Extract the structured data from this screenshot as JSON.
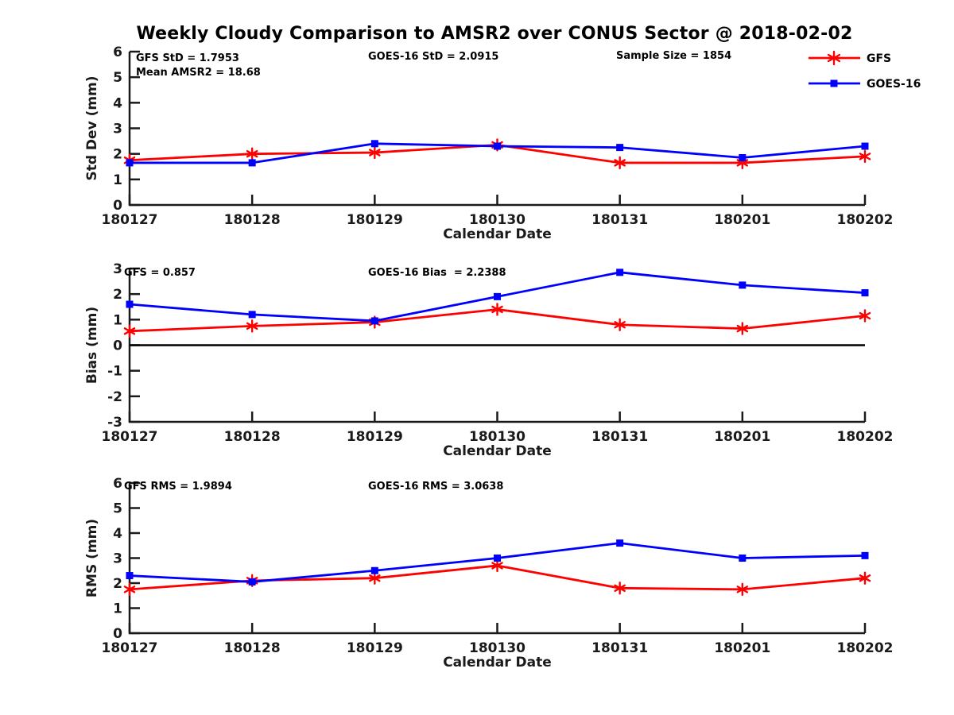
{
  "title": "Weekly Cloudy Comparison to AMSR2 over CONUS Sector @ 2018-02-02",
  "colors": {
    "gfs": "#ff0000",
    "goes16": "#0000ff",
    "axis": "#1a1a1a",
    "annotation_text": "#000000",
    "zero_line": "#000000",
    "background": "#ffffff"
  },
  "legend": {
    "position": "top-right",
    "items": [
      {
        "label": "GFS",
        "color": "#ff0000",
        "marker": "asterisk"
      },
      {
        "label": "GOES-16",
        "color": "#0000ff",
        "marker": "square"
      }
    ]
  },
  "x_axis": {
    "label": "Calendar Date",
    "categories": [
      "180127",
      "180128",
      "180129",
      "180130",
      "180131",
      "180201",
      "180202"
    ]
  },
  "chart_data": [
    {
      "type": "line",
      "title": "",
      "ylabel": "Std Dev (mm)",
      "xlabel": "Calendar Date",
      "categories": [
        "180127",
        "180128",
        "180129",
        "180130",
        "180131",
        "180201",
        "180202"
      ],
      "ylim": [
        0,
        6
      ],
      "yticks": [
        0,
        1,
        2,
        3,
        4,
        5,
        6
      ],
      "grid": false,
      "zero_line": false,
      "legend_position": "top-right-of-figure",
      "annotations": [
        "GFS StD = 1.7953",
        "Mean AMSR2 = 18.68",
        "GOES-16 StD = 2.0915",
        "Sample Size = 1854"
      ],
      "series": [
        {
          "name": "GFS",
          "color": "#ff0000",
          "marker": "asterisk",
          "values": [
            1.75,
            2.0,
            2.05,
            2.35,
            1.65,
            1.65,
            1.9
          ]
        },
        {
          "name": "GOES-16",
          "color": "#0000ff",
          "marker": "square",
          "values": [
            1.65,
            1.65,
            2.4,
            2.3,
            2.25,
            1.85,
            2.3
          ]
        }
      ]
    },
    {
      "type": "line",
      "title": "",
      "ylabel": "Bias (mm)",
      "xlabel": "Calendar Date",
      "categories": [
        "180127",
        "180128",
        "180129",
        "180130",
        "180131",
        "180201",
        "180202"
      ],
      "ylim": [
        -3,
        3
      ],
      "yticks": [
        -3,
        -2,
        -1,
        0,
        1,
        2,
        3
      ],
      "grid": false,
      "zero_line": true,
      "annotations": [
        "GFS = 0.857",
        "GOES-16 Bias  = 2.2388"
      ],
      "series": [
        {
          "name": "GFS",
          "color": "#ff0000",
          "marker": "asterisk",
          "values": [
            0.55,
            0.75,
            0.9,
            1.4,
            0.8,
            0.65,
            1.15
          ]
        },
        {
          "name": "GOES-16",
          "color": "#0000ff",
          "marker": "square",
          "values": [
            1.6,
            1.2,
            0.95,
            1.9,
            2.85,
            2.35,
            2.05
          ]
        }
      ]
    },
    {
      "type": "line",
      "title": "",
      "ylabel": "RMS (mm)",
      "xlabel": "Calendar Date",
      "categories": [
        "180127",
        "180128",
        "180129",
        "180130",
        "180131",
        "180201",
        "180202"
      ],
      "ylim": [
        0,
        6
      ],
      "yticks": [
        0,
        1,
        2,
        3,
        4,
        5,
        6
      ],
      "grid": false,
      "zero_line": false,
      "annotations": [
        "GFS RMS = 1.9894",
        "GOES-16 RMS = 3.0638"
      ],
      "series": [
        {
          "name": "GFS",
          "color": "#ff0000",
          "marker": "asterisk",
          "values": [
            1.75,
            2.1,
            2.2,
            2.7,
            1.8,
            1.75,
            2.2
          ]
        },
        {
          "name": "GOES-16",
          "color": "#0000ff",
          "marker": "square",
          "values": [
            2.3,
            2.05,
            2.5,
            3.0,
            3.6,
            3.0,
            3.1
          ]
        }
      ]
    }
  ]
}
